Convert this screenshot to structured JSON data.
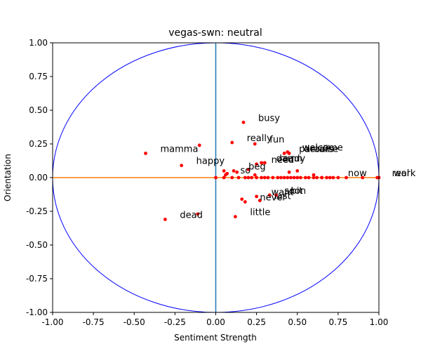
{
  "chart_data": {
    "type": "scatter",
    "title": "vegas-swn: neutral",
    "xlabel": "Sentiment Strength",
    "ylabel": "Orientation",
    "xlim": [
      -1.0,
      1.0
    ],
    "ylim": [
      -1.0,
      1.0
    ],
    "xticks": [
      "-1.00",
      "-0.75",
      "-0.50",
      "-0.25",
      "0.00",
      "0.25",
      "0.50",
      "0.75",
      "1.00"
    ],
    "yticks": [
      "-1.00",
      "-0.75",
      "-0.50",
      "-0.25",
      "0.00",
      "0.25",
      "0.50",
      "0.75",
      "1.00"
    ],
    "grid": false,
    "colors": {
      "points": "#ff0000",
      "circle": "#0000ff",
      "vertical_line": "#1f77b4",
      "horizontal_line": "#ff7f0e"
    },
    "labeled_points": [
      {
        "label": "busy",
        "x": 0.17,
        "y": 0.41
      },
      {
        "label": "fun",
        "x": 0.24,
        "y": 0.25
      },
      {
        "label": "welcome",
        "x": 0.44,
        "y": 0.19
      },
      {
        "label": "really",
        "x": 0.1,
        "y": 0.26
      },
      {
        "label": "mamma",
        "x": -0.43,
        "y": 0.18
      },
      {
        "label": "paradise",
        "x": 0.42,
        "y": 0.18
      },
      {
        "label": "details",
        "x": 0.45,
        "y": 0.18
      },
      {
        "label": "happy",
        "x": -0.21,
        "y": 0.09
      },
      {
        "label": "damn",
        "x": 0.28,
        "y": 0.11
      },
      {
        "label": "ready",
        "x": 0.3,
        "y": 0.11
      },
      {
        "label": "need",
        "x": 0.25,
        "y": 0.1
      },
      {
        "label": "beg",
        "x": 0.11,
        "y": 0.05
      },
      {
        "label": "so",
        "x": 0.06,
        "y": 0.02
      },
      {
        "label": "work",
        "x": 1.0,
        "y": 0.0
      },
      {
        "label": "real",
        "x": 0.99,
        "y": 0.0
      },
      {
        "label": "now",
        "x": 0.72,
        "y": 0.0
      },
      {
        "label": "soon",
        "x": 0.33,
        "y": -0.13
      },
      {
        "label": "want",
        "x": 0.25,
        "y": -0.14
      },
      {
        "label": "bit",
        "x": 0.37,
        "y": -0.13
      },
      {
        "label": "last",
        "x": 0.27,
        "y": -0.17
      },
      {
        "label": "never",
        "x": 0.18,
        "y": -0.18
      },
      {
        "label": "little",
        "x": 0.12,
        "y": -0.29
      },
      {
        "label": "dead",
        "x": -0.31,
        "y": -0.31
      }
    ],
    "unlabeled_points": [
      {
        "x": -0.1,
        "y": 0.24
      },
      {
        "x": -0.11,
        "y": -0.27
      },
      {
        "x": 0.05,
        "y": 0.05
      },
      {
        "x": 0.07,
        "y": 0.03
      },
      {
        "x": 0.16,
        "y": -0.16
      },
      {
        "x": 0.13,
        "y": 0.04
      },
      {
        "x": 0.2,
        "y": 0.06
      },
      {
        "x": 0.24,
        "y": 0.02
      },
      {
        "x": 0.45,
        "y": 0.04
      },
      {
        "x": 0.5,
        "y": 0.05
      },
      {
        "x": 0.6,
        "y": 0.02
      },
      {
        "x": 0.65,
        "y": 0.0
      },
      {
        "x": 0.8,
        "y": 0.0
      },
      {
        "x": 0.9,
        "y": 0.0
      }
    ],
    "zero_line_x": [
      0.0,
      0.05,
      0.1,
      0.14,
      0.18,
      0.2,
      0.22,
      0.25,
      0.28,
      0.3,
      0.32,
      0.35,
      0.38,
      0.4,
      0.42,
      0.44,
      0.46,
      0.48,
      0.5,
      0.52,
      0.55,
      0.57,
      0.6,
      0.62,
      0.65,
      0.68,
      0.7,
      0.75
    ]
  }
}
